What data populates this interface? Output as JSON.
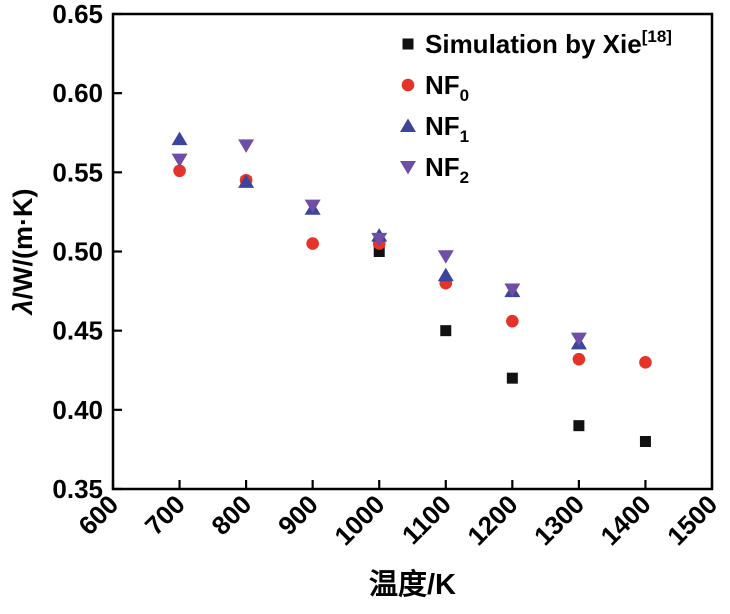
{
  "chart_data": {
    "type": "scatter",
    "title": "",
    "xlabel": "温度/K",
    "ylabel": "λ/W/(m·K)",
    "ylabel_italic": "λ",
    "ylabel_rest": "/W/(m·K)",
    "xlim": [
      600,
      1500
    ],
    "ylim": [
      0.35,
      0.65
    ],
    "xticks": [
      600,
      700,
      800,
      900,
      1000,
      1100,
      1200,
      1300,
      1400,
      1500
    ],
    "xtick_labels": [
      "600",
      "700",
      "800",
      "900",
      "1000",
      "1100",
      "1200",
      "1300",
      "1400",
      "1500"
    ],
    "yticks": [
      0.35,
      0.4,
      0.45,
      0.5,
      0.55,
      0.6,
      0.65
    ],
    "ytick_labels": [
      "0.35",
      "0.40",
      "0.45",
      "0.50",
      "0.55",
      "0.60",
      "0.65"
    ],
    "x_tick_rotation": 45,
    "grid": false,
    "legend_position": "top-right-inside",
    "frame": true,
    "axis_color": "#000000",
    "series": [
      {
        "name": "Simulation by Xie",
        "label_sup": "[18]",
        "label_sub": "",
        "marker": "square",
        "color": "#111111",
        "points": [
          [
            800,
            0.544
          ],
          [
            1000,
            0.5
          ],
          [
            1100,
            0.45
          ],
          [
            1200,
            0.42
          ],
          [
            1300,
            0.39
          ],
          [
            1400,
            0.38
          ]
        ]
      },
      {
        "name": "NF",
        "label_sup": "",
        "label_sub": "0",
        "marker": "circle",
        "color": "#e5332a",
        "points": [
          [
            700,
            0.551
          ],
          [
            800,
            0.545
          ],
          [
            900,
            0.505
          ],
          [
            1000,
            0.505
          ],
          [
            1100,
            0.48
          ],
          [
            1200,
            0.456
          ],
          [
            1300,
            0.432
          ],
          [
            1400,
            0.43
          ]
        ]
      },
      {
        "name": "NF",
        "label_sup": "",
        "label_sub": "1",
        "marker": "triangle-up",
        "color": "#3c459c",
        "points": [
          [
            700,
            0.571
          ],
          [
            800,
            0.544
          ],
          [
            900,
            0.527
          ],
          [
            1000,
            0.51
          ],
          [
            1100,
            0.485
          ],
          [
            1200,
            0.475
          ],
          [
            1300,
            0.442
          ]
        ]
      },
      {
        "name": "NF",
        "label_sup": "",
        "label_sub": "2",
        "marker": "triangle-down",
        "color": "#6e4fa5",
        "points": [
          [
            700,
            0.558
          ],
          [
            800,
            0.567
          ],
          [
            900,
            0.529
          ],
          [
            1000,
            0.508
          ],
          [
            1100,
            0.497
          ],
          [
            1200,
            0.476
          ],
          [
            1300,
            0.445
          ]
        ]
      }
    ]
  }
}
